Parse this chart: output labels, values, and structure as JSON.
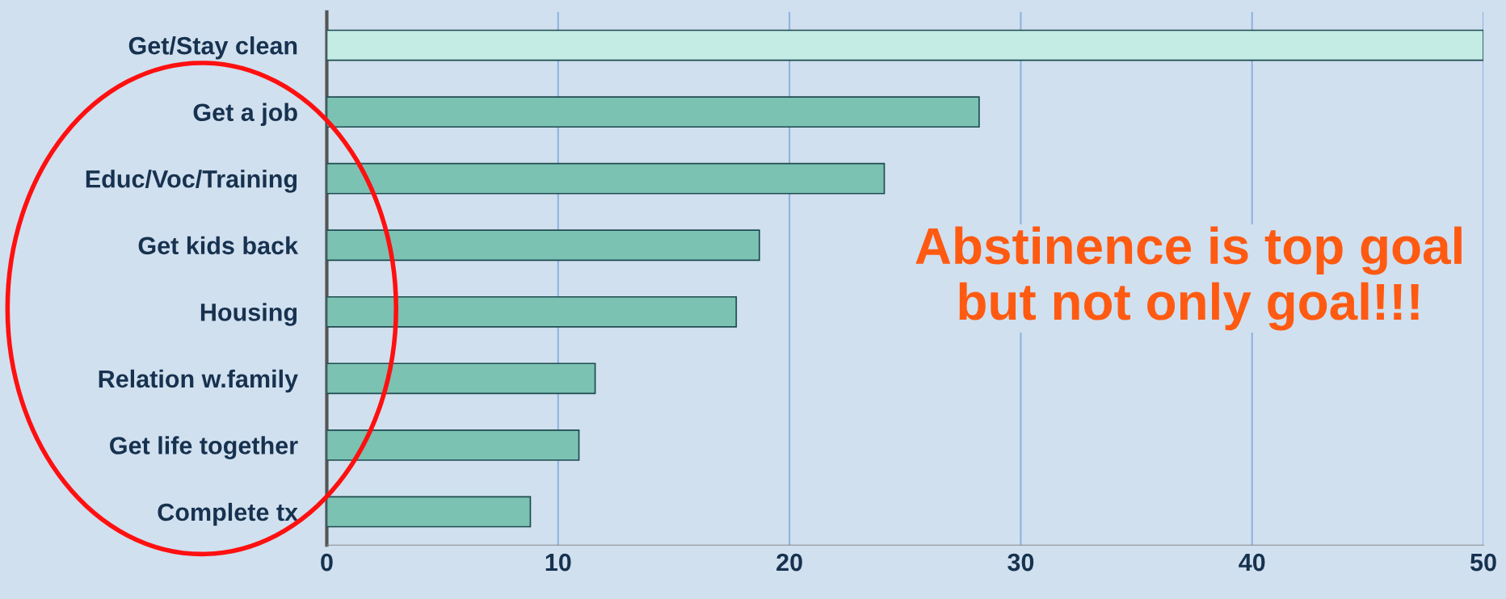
{
  "chart_data": {
    "type": "bar",
    "orientation": "horizontal",
    "categories": [
      "Get/Stay clean",
      "Get a job",
      "Educ/Voc/Training",
      "Get kids back",
      "Housing",
      "Relation w.family",
      "Get life together",
      "Complete tx"
    ],
    "values": [
      50,
      28.2,
      24.1,
      18.7,
      17.7,
      11.6,
      10.9,
      8.8
    ],
    "colors": [
      "#c4ebe4",
      "#7bc2b3",
      "#7bc2b3",
      "#7bc2b3",
      "#7bc2b3",
      "#7bc2b3",
      "#7bc2b3",
      "#7bc2b3"
    ],
    "xlim": [
      0,
      50
    ],
    "xticks": [
      0,
      10,
      20,
      30,
      40,
      50
    ],
    "grid": "x",
    "annotations": [
      "Abstinence is top goal\nbut not only goal!!!"
    ]
  }
}
